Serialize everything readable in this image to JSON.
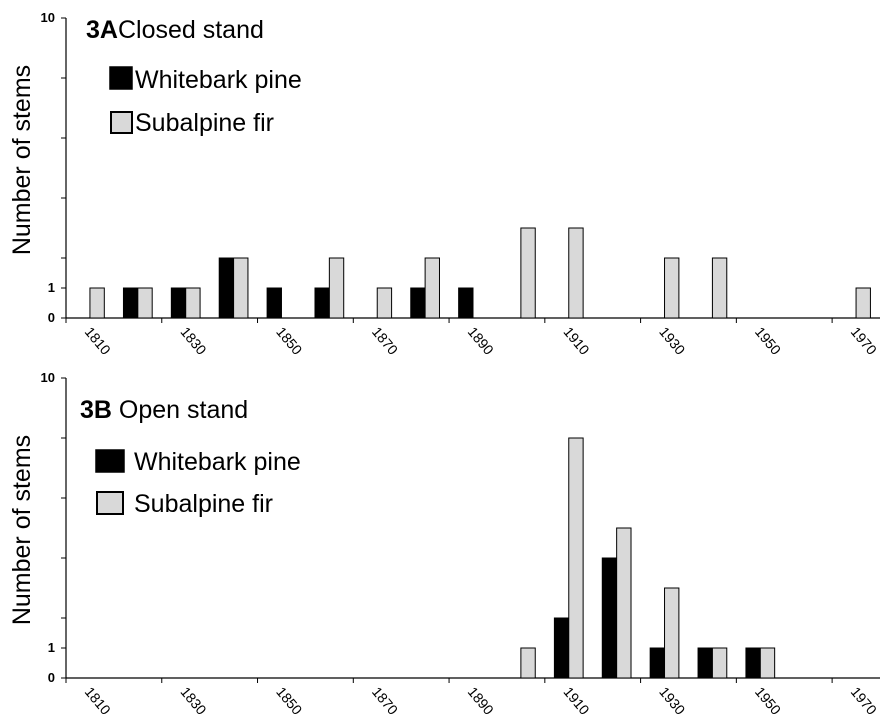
{
  "chart_data": [
    {
      "type": "bar",
      "title_bold": "3A",
      "title_rest": "Closed stand",
      "ylabel": "Number of stems",
      "ylim": [
        0,
        10
      ],
      "yticks": [
        "0",
        "1",
        "10"
      ],
      "categories": [
        "1810",
        "1820",
        "1830",
        "1840",
        "1850",
        "1860",
        "1870",
        "1880",
        "1890",
        "1900",
        "1910",
        "1920",
        "1930",
        "1940",
        "1950",
        "1960",
        "1970"
      ],
      "x_tick_labels": [
        "1810",
        "1830",
        "1850",
        "1870",
        "1890",
        "1910",
        "1930",
        "1950",
        "1970"
      ],
      "series": [
        {
          "name": "Whitebark pine",
          "color": "#000000",
          "values": [
            0,
            1,
            1,
            2,
            1,
            1,
            0,
            1,
            1,
            0,
            0,
            0,
            0,
            0,
            0,
            0,
            0
          ]
        },
        {
          "name": "Subalpine fir",
          "color": "#d9d9d9",
          "values": [
            1,
            1,
            1,
            2,
            0,
            2,
            1,
            2,
            0,
            3,
            3,
            0,
            2,
            2,
            0,
            0,
            1
          ]
        }
      ],
      "legend_position": "top-left"
    },
    {
      "type": "bar",
      "title_bold": "3B",
      "title_rest": " Open stand",
      "ylabel": "Number of stems",
      "ylim": [
        0,
        10
      ],
      "yticks": [
        "0",
        "1",
        "10"
      ],
      "categories": [
        "1810",
        "1820",
        "1830",
        "1840",
        "1850",
        "1860",
        "1870",
        "1880",
        "1890",
        "1900",
        "1910",
        "1920",
        "1930",
        "1940",
        "1950",
        "1960",
        "1970"
      ],
      "x_tick_labels": [
        "1810",
        "1830",
        "1850",
        "1870",
        "1890",
        "1910",
        "1930",
        "1950",
        "1970"
      ],
      "series": [
        {
          "name": "Whitebark pine",
          "color": "#000000",
          "values": [
            0,
            0,
            0,
            0,
            0,
            0,
            0,
            0,
            0,
            0,
            2,
            4,
            1,
            1,
            1,
            0,
            0
          ]
        },
        {
          "name": "Subalpine fir",
          "color": "#d9d9d9",
          "values": [
            0,
            0,
            0,
            0,
            0,
            0,
            0,
            0,
            0,
            1,
            8,
            5,
            3,
            1,
            1,
            0,
            0
          ]
        }
      ],
      "legend_position": "top-left"
    }
  ]
}
